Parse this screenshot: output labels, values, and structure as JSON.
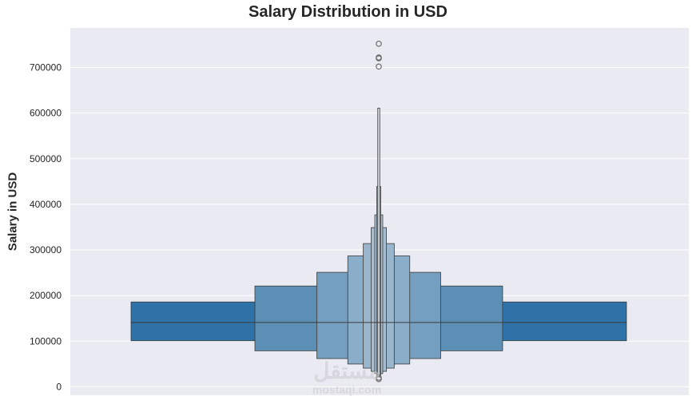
{
  "chart_data": {
    "type": "boxen",
    "title": "Salary Distribution in USD",
    "xlabel": "",
    "ylabel": "Salary in USD",
    "ylim": [
      -20000,
      780000
    ],
    "yticks": [
      0,
      100000,
      200000,
      300000,
      400000,
      500000,
      600000,
      700000
    ],
    "ytick_labels": [
      "0",
      "100000",
      "200000",
      "300000",
      "400000",
      "500000",
      "600000",
      "700000"
    ],
    "grid": true,
    "median": 141000,
    "boxes": [
      {
        "low": 101000,
        "high": 186000,
        "width": 1.0,
        "color": "#2e72a7"
      },
      {
        "low": 79000,
        "high": 221000,
        "width": 0.5,
        "color": "#5b8fb6"
      },
      {
        "low": 62000,
        "high": 251000,
        "width": 0.25,
        "color": "#759fc0"
      },
      {
        "low": 50000,
        "high": 287000,
        "width": 0.125,
        "color": "#8aadc9"
      },
      {
        "low": 41000,
        "high": 314000,
        "width": 0.0625,
        "color": "#99b6cd"
      },
      {
        "low": 34000,
        "high": 349000,
        "width": 0.031,
        "color": "#a6bdd1"
      },
      {
        "low": 29000,
        "high": 377000,
        "width": 0.016,
        "color": "#b0c3d4"
      },
      {
        "low": 25000,
        "high": 439000,
        "width": 0.008,
        "color": "#bfcddb"
      },
      {
        "low": 22000,
        "high": 611000,
        "width": 0.004,
        "color": "#d4dde6"
      }
    ],
    "outliers": [
      752000,
      722000,
      720000,
      702000,
      20000,
      17000
    ],
    "colors": {
      "background": "#eaeaf2",
      "grid": "#ffffff",
      "edge": "#3a3a3a",
      "outlier": "#6e6e6e"
    }
  },
  "watermark": {
    "arabic": "مستقل",
    "latin": "mostaqi.com"
  }
}
